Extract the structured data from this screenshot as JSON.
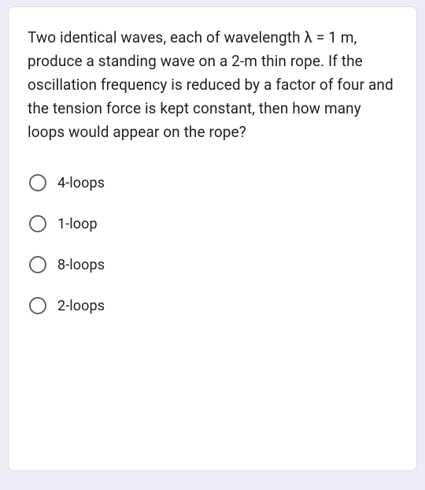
{
  "card": {
    "background_color": "#ffffff",
    "border_color": "#dadce0",
    "border_radius": 8
  },
  "page": {
    "background_color": "#f0ebf8"
  },
  "question": {
    "text": "Two identical waves, each of wavelength λ = 1 m, produce a standing wave on a 2-m thin rope. If the oscillation frequency is reduced by a factor of four and the tension force is kept constant, then how many loops would appear on the rope?",
    "fontsize": 19,
    "line_height": 30,
    "color": "#202124"
  },
  "radio": {
    "border_color": "#5f6368",
    "size": 22
  },
  "options": [
    {
      "label": "4-loops",
      "selected": false
    },
    {
      "label": "1-loop",
      "selected": false
    },
    {
      "label": "8-loops",
      "selected": false
    },
    {
      "label": "2-loops",
      "selected": false
    }
  ]
}
